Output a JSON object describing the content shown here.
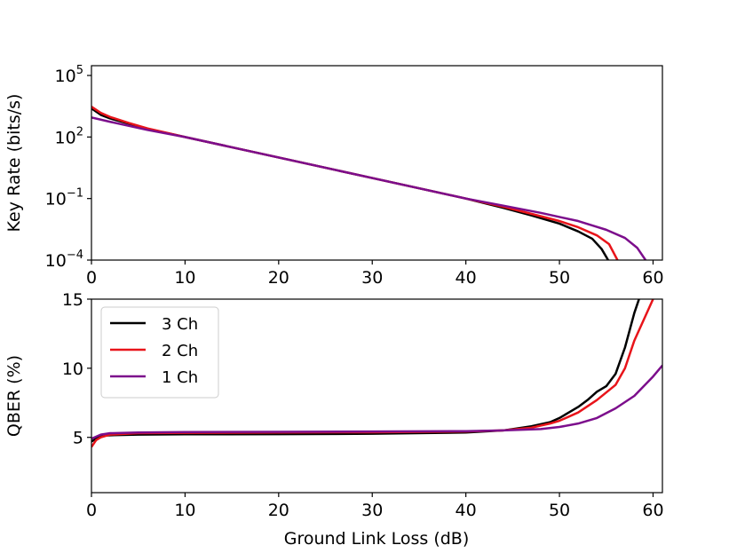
{
  "figure": {
    "xlabel": "Ground Link Loss (dB)"
  },
  "legend": {
    "placement": "upper-left",
    "entries": [
      "3 Ch",
      "2 Ch",
      "1 Ch"
    ]
  },
  "colors": {
    "3 Ch": "#000000",
    "2 Ch": "#e8141a",
    "1 Ch": "#7c0e8c"
  },
  "chart_data": [
    {
      "type": "line",
      "title": "",
      "xlabel": "",
      "ylabel": "Key Rate (bits/s)",
      "yscale": "log",
      "xlim": [
        0,
        61
      ],
      "ylim": [
        0.0001,
        300000
      ],
      "xticks": [
        0,
        10,
        20,
        30,
        40,
        50,
        60
      ],
      "xtick_labels": [
        "0",
        "10",
        "20",
        "30",
        "40",
        "50",
        "60"
      ],
      "yticks": [
        0.0001,
        0.1,
        100,
        100000
      ],
      "ytick_labels": [
        {
          "base": "10",
          "exp": "−4"
        },
        {
          "base": "10",
          "exp": "−1"
        },
        {
          "base": "10",
          "exp": "2"
        },
        {
          "base": "10",
          "exp": "5"
        }
      ],
      "grid": false,
      "series": [
        {
          "name": "3 Ch",
          "points": [
            [
              0,
              2500
            ],
            [
              1,
              1200
            ],
            [
              2,
              800
            ],
            [
              4,
              450
            ],
            [
              6,
              250
            ],
            [
              10,
              100
            ],
            [
              20,
              10
            ],
            [
              30,
              1
            ],
            [
              40,
              0.1
            ],
            [
              44,
              0.035
            ],
            [
              47,
              0.015
            ],
            [
              50,
              0.006
            ],
            [
              52,
              0.0025
            ],
            [
              53.5,
              0.0011
            ],
            [
              54.5,
              0.00035
            ],
            [
              55.2,
              0.0001
            ]
          ]
        },
        {
          "name": "2 Ch",
          "points": [
            [
              0,
              3000
            ],
            [
              1,
              1500
            ],
            [
              2,
              950
            ],
            [
              4,
              480
            ],
            [
              6,
              260
            ],
            [
              10,
              100
            ],
            [
              20,
              10
            ],
            [
              30,
              1
            ],
            [
              40,
              0.1
            ],
            [
              44,
              0.04
            ],
            [
              47,
              0.018
            ],
            [
              50,
              0.008
            ],
            [
              52,
              0.004
            ],
            [
              54,
              0.0016
            ],
            [
              55.3,
              0.0006
            ],
            [
              56.2,
              0.0001
            ]
          ]
        },
        {
          "name": "1 Ch",
          "points": [
            [
              0,
              900
            ],
            [
              2,
              550
            ],
            [
              4,
              350
            ],
            [
              6,
              220
            ],
            [
              10,
              100
            ],
            [
              20,
              10
            ],
            [
              30,
              1
            ],
            [
              40,
              0.1
            ],
            [
              44,
              0.045
            ],
            [
              48,
              0.02
            ],
            [
              52,
              0.008
            ],
            [
              55,
              0.003
            ],
            [
              57,
              0.0012
            ],
            [
              58.3,
              0.0004
            ],
            [
              59.2,
              0.0001
            ]
          ]
        }
      ]
    },
    {
      "type": "line",
      "title": "",
      "xlabel": "Ground Link Loss (dB)",
      "ylabel": "QBER (%)",
      "xlim": [
        0,
        61
      ],
      "ylim": [
        1,
        15
      ],
      "xticks": [
        0,
        10,
        20,
        30,
        40,
        50,
        60
      ],
      "xtick_labels": [
        "0",
        "10",
        "20",
        "30",
        "40",
        "50",
        "60"
      ],
      "yticks": [
        5,
        10,
        15
      ],
      "ytick_labels": [
        "5",
        "10",
        "15"
      ],
      "grid": false,
      "series": [
        {
          "name": "3 Ch",
          "points": [
            [
              0,
              4.7
            ],
            [
              1,
              5.1
            ],
            [
              2,
              5.15
            ],
            [
              5,
              5.2
            ],
            [
              10,
              5.22
            ],
            [
              20,
              5.23
            ],
            [
              30,
              5.26
            ],
            [
              40,
              5.35
            ],
            [
              44,
              5.5
            ],
            [
              47,
              5.8
            ],
            [
              49,
              6.1
            ],
            [
              50,
              6.4
            ],
            [
              51,
              6.8
            ],
            [
              52,
              7.2
            ],
            [
              53,
              7.7
            ],
            [
              54,
              8.3
            ],
            [
              55,
              8.7
            ],
            [
              56,
              9.6
            ],
            [
              57,
              11.5
            ],
            [
              58,
              14.0
            ],
            [
              58.5,
              15.0
            ]
          ]
        },
        {
          "name": "2 Ch",
          "points": [
            [
              0,
              4.3
            ],
            [
              0.5,
              4.8
            ],
            [
              1,
              5.0
            ],
            [
              2,
              5.2
            ],
            [
              5,
              5.3
            ],
            [
              10,
              5.33
            ],
            [
              20,
              5.35
            ],
            [
              30,
              5.37
            ],
            [
              40,
              5.42
            ],
            [
              44,
              5.5
            ],
            [
              47,
              5.7
            ],
            [
              49,
              6.0
            ],
            [
              50,
              6.2
            ],
            [
              52,
              6.8
            ],
            [
              54,
              7.7
            ],
            [
              56,
              8.8
            ],
            [
              57,
              10.0
            ],
            [
              58,
              12.0
            ],
            [
              59,
              13.5
            ],
            [
              60,
              15.0
            ]
          ]
        },
        {
          "name": "1 Ch",
          "points": [
            [
              0,
              4.9
            ],
            [
              1,
              5.2
            ],
            [
              2,
              5.3
            ],
            [
              5,
              5.35
            ],
            [
              10,
              5.38
            ],
            [
              20,
              5.4
            ],
            [
              30,
              5.42
            ],
            [
              40,
              5.45
            ],
            [
              44,
              5.5
            ],
            [
              48,
              5.6
            ],
            [
              50,
              5.75
            ],
            [
              52,
              6.0
            ],
            [
              54,
              6.4
            ],
            [
              56,
              7.1
            ],
            [
              58,
              8.0
            ],
            [
              59,
              8.7
            ],
            [
              60,
              9.4
            ],
            [
              61,
              10.2
            ]
          ]
        }
      ]
    }
  ]
}
